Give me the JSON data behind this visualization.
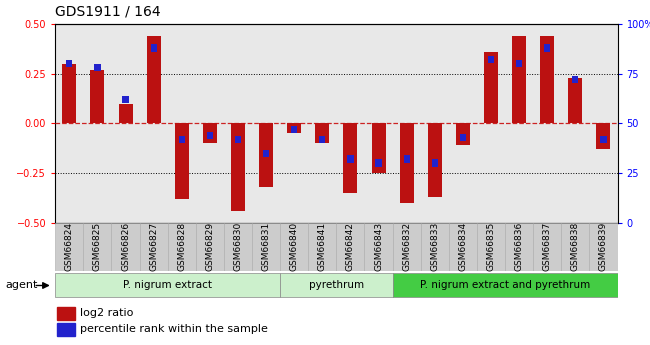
{
  "title": "GDS1911 / 164",
  "samples": [
    "GSM66824",
    "GSM66825",
    "GSM66826",
    "GSM66827",
    "GSM66828",
    "GSM66829",
    "GSM66830",
    "GSM66831",
    "GSM66840",
    "GSM66841",
    "GSM66842",
    "GSM66843",
    "GSM66832",
    "GSM66833",
    "GSM66834",
    "GSM66835",
    "GSM66836",
    "GSM66837",
    "GSM66838",
    "GSM66839"
  ],
  "log2_ratio": [
    0.3,
    0.27,
    0.1,
    0.44,
    -0.38,
    -0.1,
    -0.44,
    -0.32,
    -0.05,
    -0.1,
    -0.35,
    -0.25,
    -0.4,
    -0.37,
    -0.11,
    0.36,
    0.44,
    0.44,
    0.23,
    -0.13
  ],
  "percentile": [
    80,
    78,
    62,
    88,
    42,
    44,
    42,
    35,
    47,
    42,
    32,
    30,
    32,
    30,
    43,
    82,
    80,
    88,
    72,
    42
  ],
  "ylim_left": [
    -0.5,
    0.5
  ],
  "ylim_right": [
    0,
    100
  ],
  "yticks_left": [
    -0.5,
    -0.25,
    0.0,
    0.25,
    0.5
  ],
  "yticks_right": [
    0,
    25,
    50,
    75,
    100
  ],
  "bar_color": "#bb1111",
  "pct_color": "#2222cc",
  "hline_color": "#cc2222",
  "bg_color": "#e8e8e8",
  "title_fontsize": 10,
  "tick_fontsize": 7,
  "label_fontsize": 6.5,
  "group1_color": "#ccf0cc",
  "group2_color": "#44cc44",
  "legend_red": "log2 ratio",
  "legend_blue": "percentile rank within the sample"
}
